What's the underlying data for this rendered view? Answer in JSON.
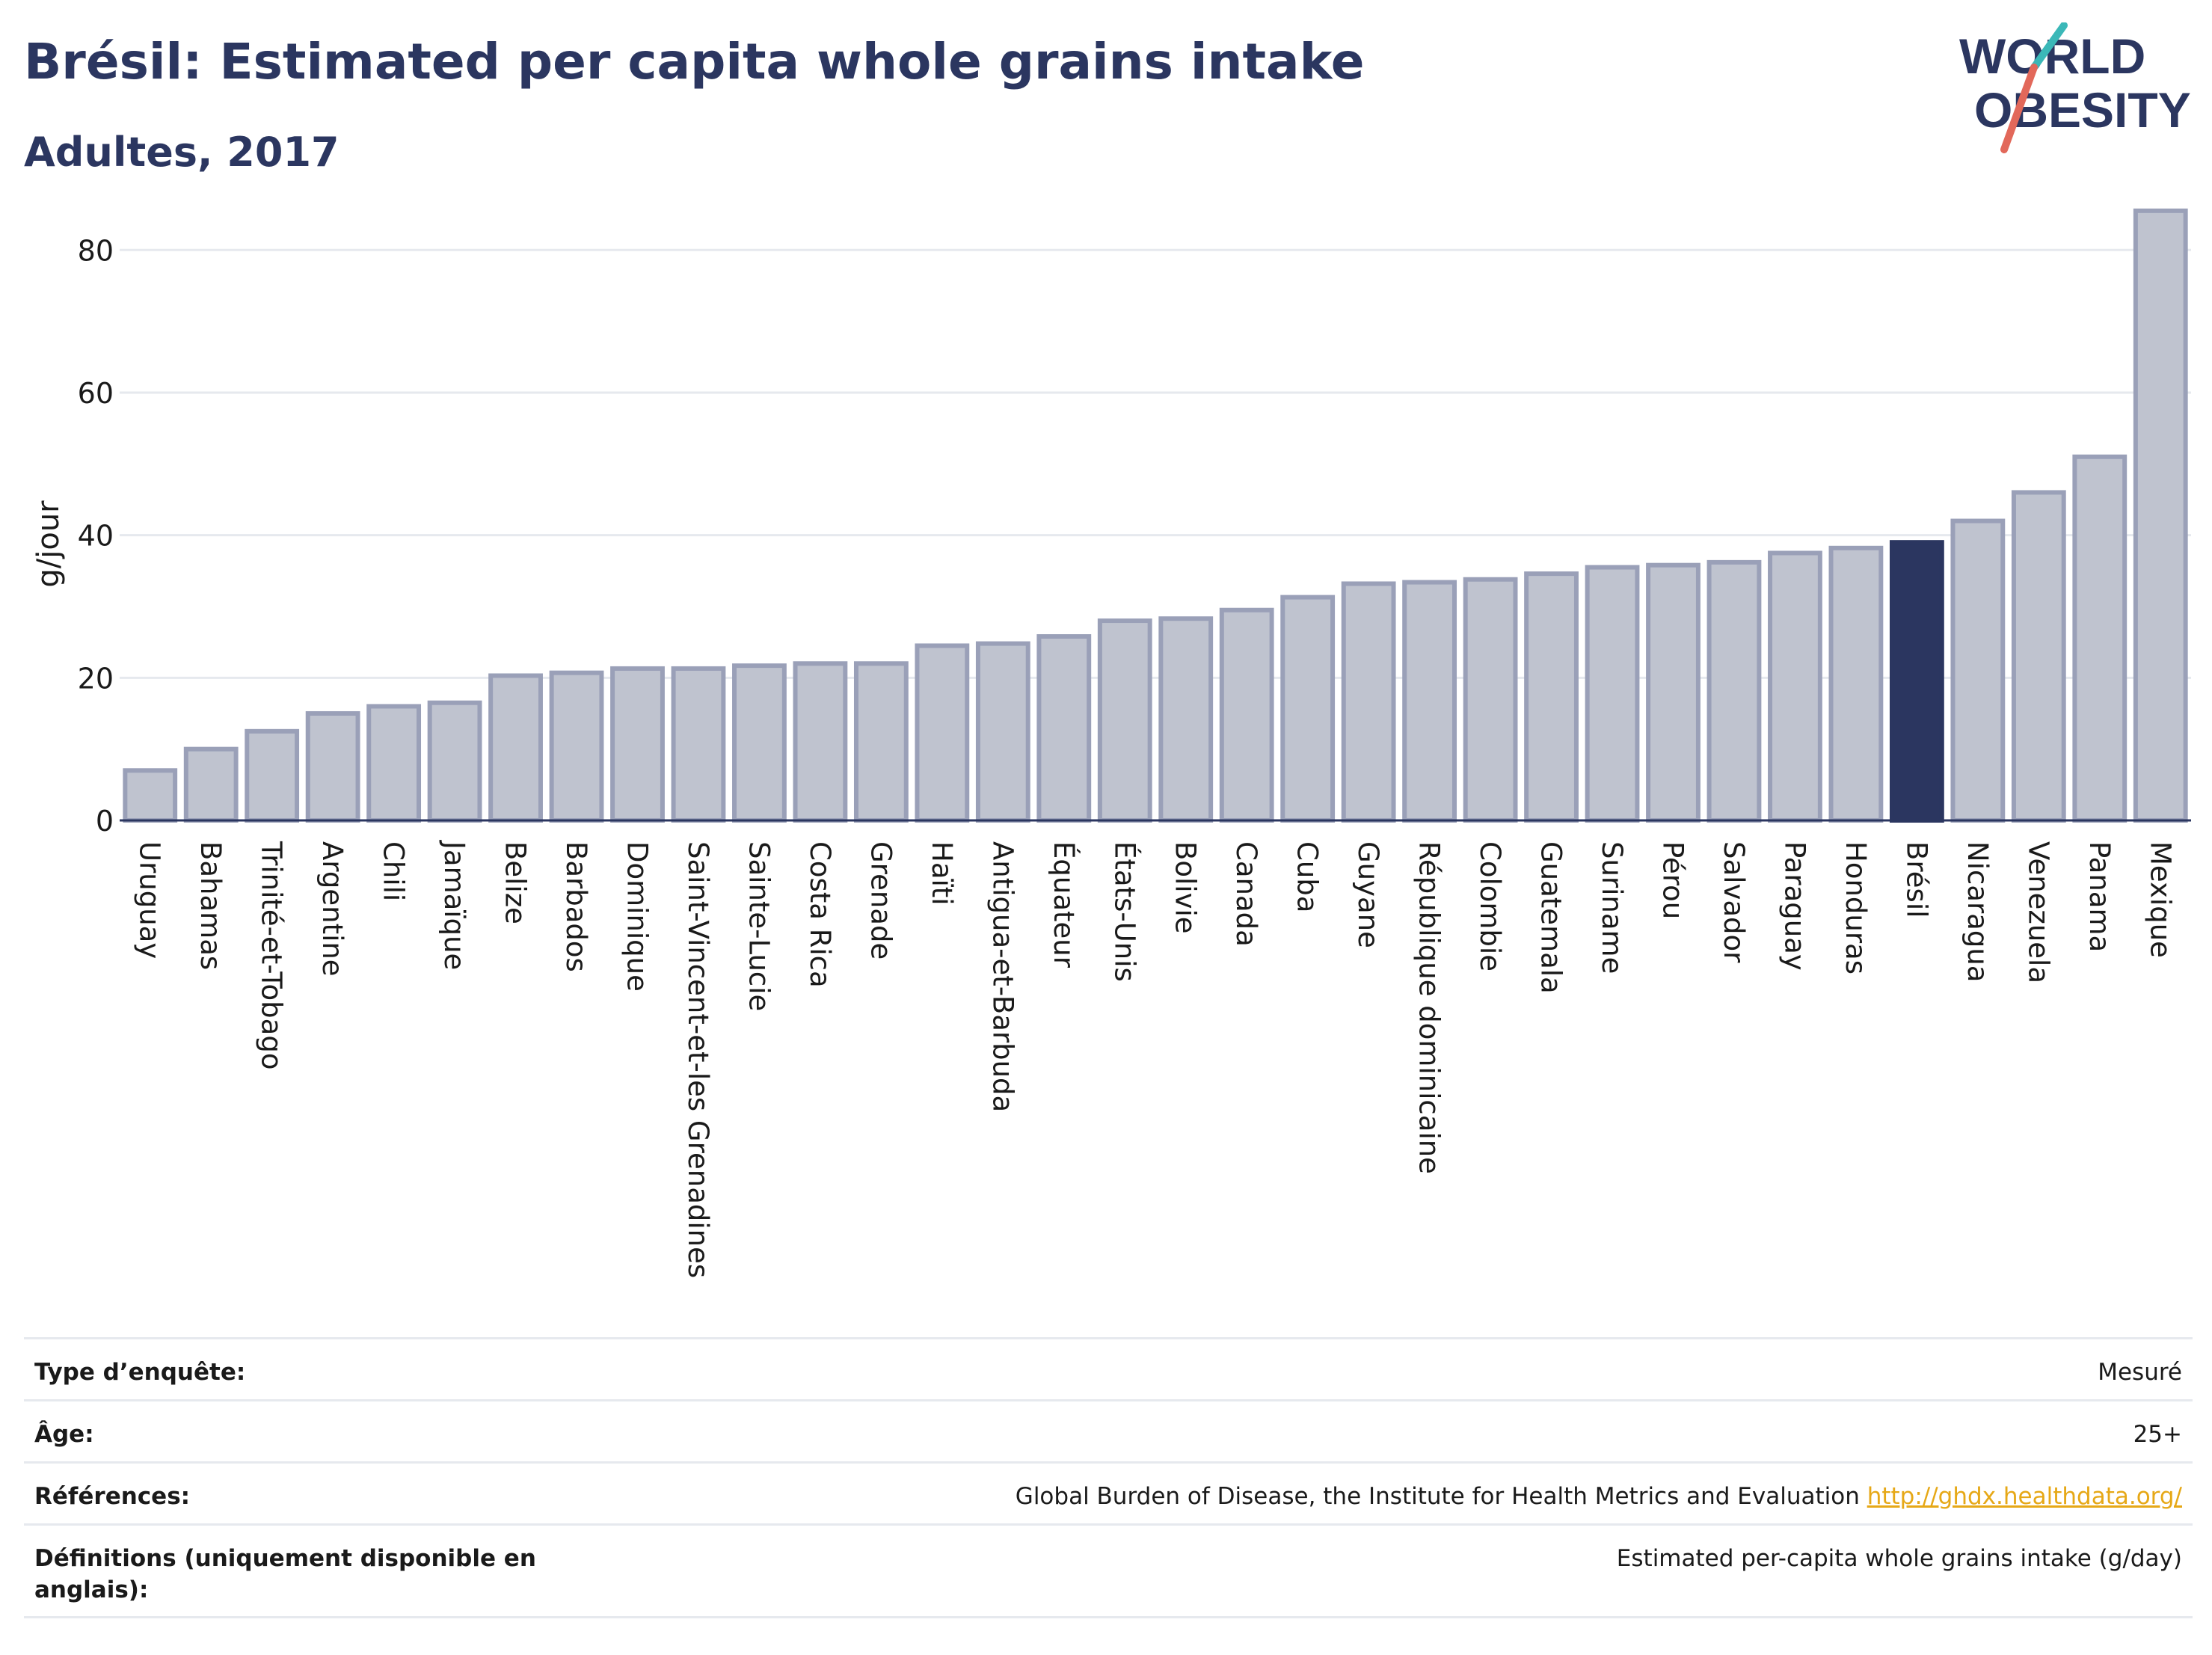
{
  "header": {
    "title": "Brésil: Estimated per capita whole grains intake",
    "subtitle": "Adultes, 2017"
  },
  "logo": {
    "line1": "WORLD",
    "line2": "OBESITY",
    "colors": {
      "text": "#2b3660",
      "accent_teal": "#3bb8b8",
      "accent_coral": "#e2685a"
    }
  },
  "colors": {
    "bar": "#bfc3cf",
    "bar_border": "#9aa0b8",
    "highlight": "#2b3660",
    "grid": "#e6e9ee",
    "axis": "#2b3660"
  },
  "chart_data": {
    "type": "bar",
    "title": "",
    "xlabel": "",
    "ylabel": "g/jour",
    "ylim": [
      0,
      88
    ],
    "yticks": [
      0,
      20,
      40,
      60,
      80
    ],
    "grid": true,
    "highlight": "Brésil",
    "categories": [
      "Uruguay",
      "Bahamas",
      "Trinité-et-Tobago",
      "Argentine",
      "Chili",
      "Jamaïque",
      "Belize",
      "Barbados",
      "Dominique",
      "Saint-Vincent-et-les Grenadines",
      "Sainte-Lucie",
      "Costa Rica",
      "Grenade",
      "Haïti",
      "Antigua-et-Barbuda",
      "Équateur",
      "États-Unis",
      "Bolivie",
      "Canada",
      "Cuba",
      "Guyane",
      "République dominicaine",
      "Colombie",
      "Guatemala",
      "Suriname",
      "Pérou",
      "Salvador",
      "Paraguay",
      "Honduras",
      "Brésil",
      "Nicaragua",
      "Venezuela",
      "Panama",
      "Mexique"
    ],
    "values": [
      7,
      10,
      12.5,
      15,
      16,
      16.5,
      20.3,
      20.7,
      21.3,
      21.3,
      21.7,
      22,
      22,
      24.5,
      24.8,
      25.8,
      28,
      28.3,
      29.5,
      31.3,
      33.2,
      33.4,
      33.8,
      34.6,
      35.5,
      35.8,
      36.2,
      37.5,
      38.2,
      39,
      42,
      46,
      51,
      85.5
    ]
  },
  "info": {
    "rows": [
      {
        "label": "Type d’enquête:",
        "value": "Mesuré"
      },
      {
        "label": "Âge:",
        "value": "25+"
      },
      {
        "label": "Références:",
        "value": "Global Burden of Disease, the Institute for Health Metrics and Evaluation",
        "link": "http://ghdx.healthdata.org/"
      },
      {
        "label": "Définitions (uniquement disponible en anglais):",
        "value": "Estimated per-capita whole grains intake (g/day)"
      }
    ]
  }
}
